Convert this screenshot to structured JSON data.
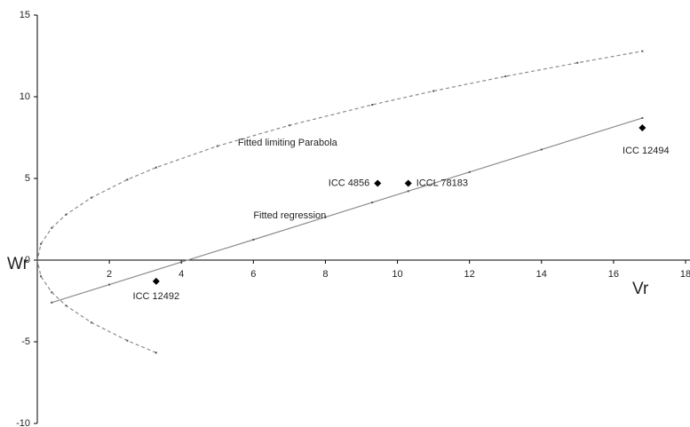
{
  "chart_data": {
    "type": "line",
    "x_label": "Vr",
    "y_label": "Wr",
    "xlim": [
      0,
      18
    ],
    "ylim": [
      -10,
      15
    ],
    "xticks": [
      2,
      4,
      6,
      8,
      10,
      12,
      14,
      16,
      18
    ],
    "yticks": [
      -10,
      -5,
      0,
      5,
      10,
      15
    ],
    "series": [
      {
        "name": "Fitted limiting Parabola",
        "color": "#8c8c8c",
        "style": "dashed",
        "x": [
          3.3,
          2.5,
          1.5,
          0.8,
          0.4,
          0.1,
          0,
          0.1,
          0.4,
          0.8,
          1.5,
          2.5,
          3.3,
          5,
          7,
          9.3,
          11,
          13,
          15,
          16.8
        ],
        "values": [
          -5.67,
          -4.93,
          -3.82,
          -2.79,
          -1.97,
          -0.99,
          0,
          0.99,
          1.97,
          2.79,
          3.82,
          4.93,
          5.67,
          6.98,
          8.25,
          9.51,
          10.35,
          11.25,
          12.08,
          12.79
        ]
      },
      {
        "name": "Fitted regression",
        "color": "#8c8c8c",
        "style": "solid",
        "x": [
          0.4,
          2,
          4,
          6,
          8,
          9.3,
          10.3,
          12,
          14,
          16.8
        ],
        "values": [
          -2.6,
          -1.5,
          -0.12,
          1.25,
          2.63,
          3.53,
          4.22,
          5.39,
          6.77,
          8.7
        ]
      },
      {
        "color": "#000000",
        "marker": "diamond",
        "labels": [
          "ICC 12492",
          "ICC 4856",
          "ICCL 78183",
          "ICC 12494"
        ],
        "x": [
          3.3,
          9.45,
          10.3,
          16.8
        ],
        "values": [
          -1.3,
          4.7,
          4.7,
          8.1
        ]
      }
    ]
  }
}
